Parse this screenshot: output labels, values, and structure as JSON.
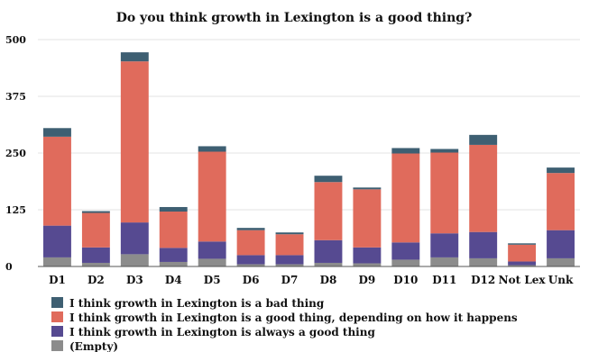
{
  "chart_data": {
    "type": "bar",
    "stacked": true,
    "title": "Do you think growth in Lexington is a good thing?",
    "xlabel": "",
    "ylabel": "",
    "ylim": [
      0,
      500
    ],
    "yticks": [
      "500",
      "375",
      "250",
      "125",
      "0"
    ],
    "ytick_values": [
      500,
      375,
      250,
      125,
      0
    ],
    "grid": true,
    "legend_position": "bottom-left",
    "categories": [
      "D1",
      "D2",
      "D3",
      "D4",
      "D5",
      "D6",
      "D7",
      "D8",
      "D9",
      "D10",
      "D11",
      "D12",
      "Not Lex",
      "Unk"
    ],
    "series": [
      {
        "name": "(Empty)",
        "color": "#8c8c8c",
        "values": [
          20,
          8,
          27,
          10,
          17,
          5,
          5,
          8,
          7,
          15,
          20,
          18,
          3,
          18
        ]
      },
      {
        "name": "I think growth in Lexington is always a good thing",
        "color": "#564a91",
        "values": [
          70,
          34,
          70,
          31,
          38,
          20,
          20,
          50,
          35,
          38,
          53,
          58,
          8,
          62
        ]
      },
      {
        "name": "I think growth in Lexington is a good thing, depending on how it happens",
        "color": "#e06b5c",
        "values": [
          196,
          76,
          355,
          80,
          198,
          55,
          46,
          128,
          128,
          196,
          178,
          192,
          37,
          126
        ]
      },
      {
        "name": "I think growth in Lexington is a bad thing",
        "color": "#3e5f72",
        "values": [
          19,
          4,
          20,
          10,
          12,
          5,
          4,
          14,
          4,
          12,
          8,
          22,
          3,
          12
        ]
      }
    ],
    "legend_order": [
      "I think growth in Lexington is a bad thing",
      "I think growth in Lexington is a good thing, depending on how it happens",
      "I think growth in Lexington is always a good thing",
      "(Empty)"
    ]
  }
}
